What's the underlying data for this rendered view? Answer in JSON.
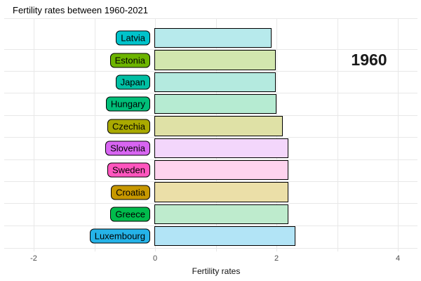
{
  "title": "Fertility rates between 1960-2021",
  "year_label": "1960",
  "x_axis": {
    "label": "Fertility rates",
    "tick_labels": [
      "-2",
      "0",
      "2",
      "4"
    ]
  },
  "chart_data": {
    "type": "bar",
    "orientation": "horizontal",
    "title": "Fertility rates between 1960-2021",
    "xlabel": "Fertility rates",
    "ylabel": "",
    "year_annotation": "1960",
    "xlim": [
      -2.5,
      4.3
    ],
    "x_ticks": [
      -2,
      0,
      2,
      4
    ],
    "x_gridlines": [
      -2,
      -1,
      0,
      1,
      2,
      3,
      4
    ],
    "grid": true,
    "legend": false,
    "categories": [
      "Latvia",
      "Estonia",
      "Japan",
      "Hungary",
      "Czechia",
      "Slovenia",
      "Sweden",
      "Croatia",
      "Greece",
      "Luxembourg"
    ],
    "values": [
      1.92,
      1.99,
      1.99,
      2.0,
      2.1,
      2.2,
      2.2,
      2.2,
      2.2,
      2.31
    ],
    "label_colors": [
      "#00C3CB",
      "#6DB500",
      "#00BFA4",
      "#00BE78",
      "#A9A900",
      "#D865F2",
      "#FF55BE",
      "#C79800",
      "#00BB4C",
      "#25B3E8"
    ],
    "bar_fills": [
      "#B7EAEC",
      "#D2E7AE",
      "#B4EADF",
      "#B6EBD2",
      "#DFE1A6",
      "#F3D6FB",
      "#FED3EE",
      "#EBDFA8",
      "#BEEBCD",
      "#B2E4F6"
    ],
    "bar_border_color": "#000000",
    "gridline_color": "#E8E8E8",
    "tick_text_color": "#4D4D4D",
    "background": "#FFFFFF"
  }
}
